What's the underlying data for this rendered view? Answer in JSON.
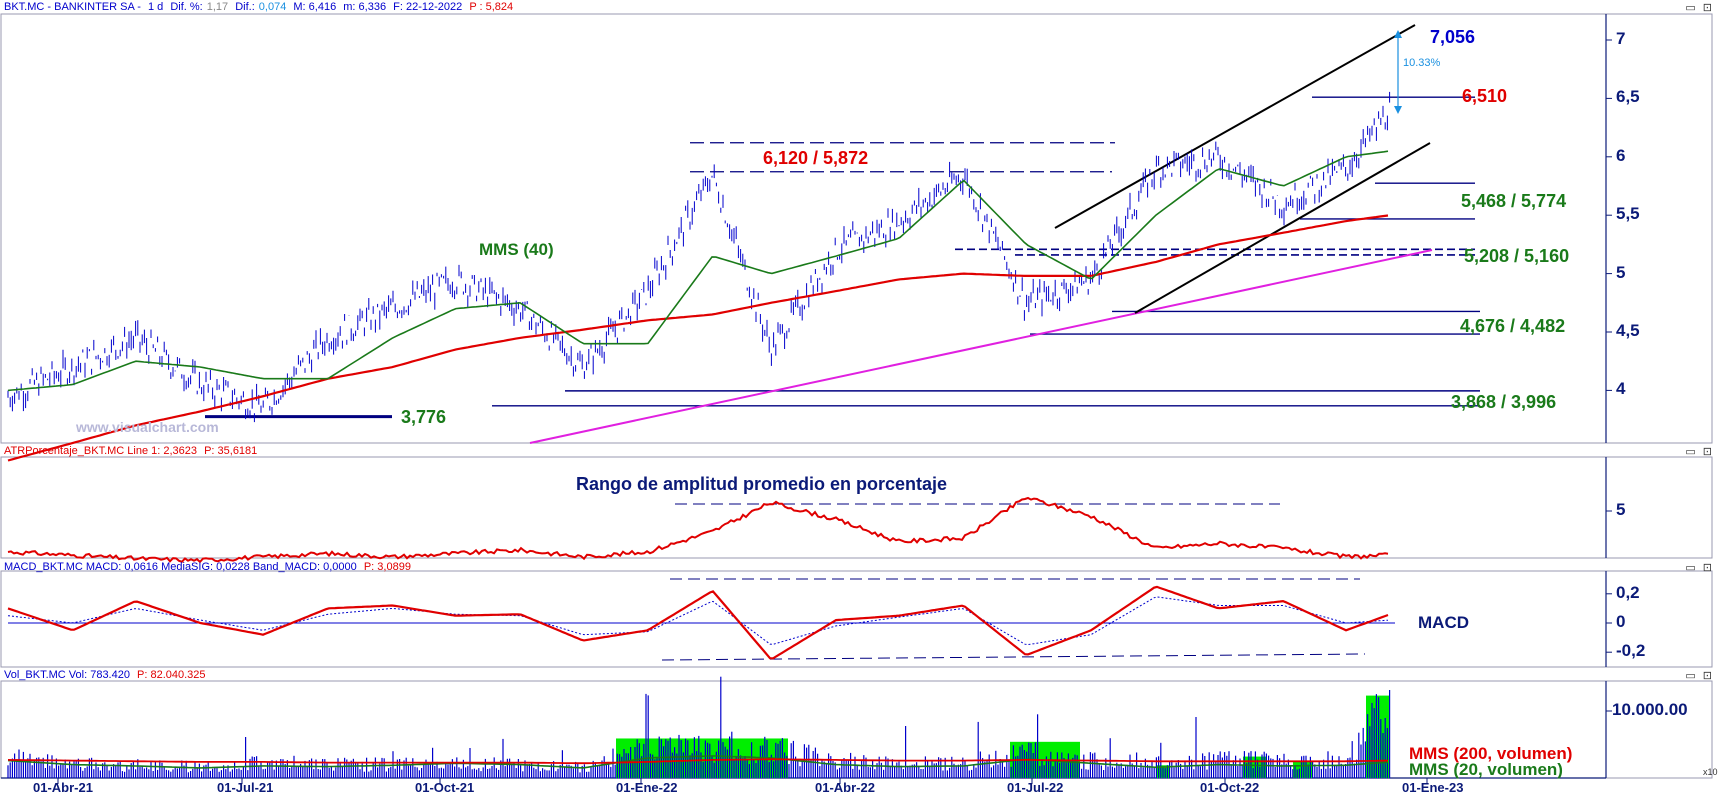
{
  "header": {
    "symbol": "BKT.MC - BANKINTER SA -",
    "timeframe": "1 d",
    "dif_pct_label": "Dif. %:",
    "dif_pct": "1,17",
    "dif_label": "Dif.:",
    "dif": "0,074",
    "max": "M: 6,416",
    "min": "m: 6,336",
    "date": "F: 22-12-2022",
    "price": "P : 5,824",
    "window_buttons": "▭ ⊡"
  },
  "panes": {
    "atr_title": "ATRPorcentaje_BKT.MC Line 1: 2,3623",
    "atr_p": "P: 35,6181",
    "macd_title": "MACD_BKT.MC MACD: 0,0616 MediaSIG: 0,0228 Band_MACD: 0,0000",
    "macd_p": "P: 3,0899",
    "vol_title": "Vol_BKT.MC Vol: 783.420",
    "vol_p": "P: 82.040.325",
    "vol_multiplier": "x10"
  },
  "watermark": "www.visualchart.com",
  "annotations": {
    "mms40": "MMS (40)",
    "level_3776": "3,776",
    "level_6120": "6,120 /  5,872",
    "level_7056": "7,056",
    "pct_10": "10.33%",
    "level_6510": "6,510",
    "level_5468": "5,468 / 5,774",
    "level_5208": "5,208 / 5,160",
    "level_4676": "4,676 / 4,482",
    "level_3868": "3,868 / 3,996",
    "atr_caption": "Rango de amplitud promedio en porcentaje",
    "macd_caption": "MACD",
    "mms200_vol": "MMS (200, volumen)",
    "mms20_vol": "MMS (20, volumen)"
  },
  "colors": {
    "price": "#0000cc",
    "mms40": "#1a7a1a",
    "mms200": "#e00000",
    "trendline": "#e020e0",
    "support": "#000080",
    "channel": "#000000",
    "volume": "#0000cc",
    "vol_highlight": "#00ee00",
    "label_green": "#1a7a1a",
    "label_red": "#e00000",
    "label_blue": "#0000cc",
    "pct_blue": "#1a90e0"
  },
  "chart_data": [
    {
      "type": "line",
      "name": "BKT.MC daily price",
      "x": [
        "2021-03-01",
        "2021-04-01",
        "2021-05-01",
        "2021-06-01",
        "2021-07-01",
        "2021-08-01",
        "2021-09-01",
        "2021-10-01",
        "2021-11-01",
        "2021-12-01",
        "2022-01-01",
        "2022-02-01",
        "2022-03-01",
        "2022-04-01",
        "2022-05-01",
        "2022-06-01",
        "2022-07-01",
        "2022-08-01",
        "2022-09-01",
        "2022-10-01",
        "2022-11-01",
        "2022-12-01",
        "2022-12-22"
      ],
      "close": [
        3.95,
        4.2,
        4.45,
        4.05,
        3.85,
        4.45,
        4.7,
        4.95,
        4.7,
        4.2,
        4.85,
        5.85,
        4.35,
        5.2,
        5.45,
        5.85,
        4.75,
        4.95,
        5.9,
        6.0,
        5.6,
        5.9,
        6.4
      ],
      "series": [
        {
          "name": "MMS (40)",
          "values": [
            4.0,
            4.05,
            4.25,
            4.2,
            4.1,
            4.1,
            4.45,
            4.7,
            4.75,
            4.4,
            4.4,
            5.15,
            5.0,
            5.15,
            5.3,
            5.8,
            5.25,
            4.95,
            5.5,
            5.9,
            5.75,
            6.0,
            6.05
          ]
        },
        {
          "name": "MMS (200)",
          "values": [
            3.4,
            3.55,
            3.7,
            3.82,
            3.95,
            4.1,
            4.2,
            4.35,
            4.45,
            4.52,
            4.6,
            4.65,
            4.75,
            4.85,
            4.95,
            5.0,
            4.98,
            4.98,
            5.1,
            5.25,
            5.35,
            5.45,
            5.5
          ]
        }
      ],
      "horizontal_levels": [
        7.056,
        6.51,
        6.12,
        5.872,
        5.774,
        5.468,
        5.208,
        5.16,
        4.676,
        4.482,
        3.996,
        3.868,
        3.776
      ],
      "percent_annotation": "10.33%",
      "ylim": [
        3.5,
        7.2
      ],
      "yticks": [
        "4",
        "4,5",
        "5",
        "5,5",
        "6",
        "6,5",
        "7"
      ],
      "xticks": [
        "01-Abr-21",
        "01-Jul-21",
        "01-Oct-21",
        "01-Ene-22",
        "01-Abr-22",
        "01-Jul-22",
        "01-Oct-22",
        "01-Ene-23"
      ]
    },
    {
      "type": "line",
      "name": "ATR %",
      "values": [
        2.6,
        2.4,
        2.2,
        2.1,
        2.3,
        2.5,
        2.3,
        2.5,
        2.7,
        2.3,
        2.6,
        3.8,
        5.5,
        4.5,
        3.2,
        3.4,
        5.8,
        4.7,
        2.8,
        3.1,
        2.8,
        2.3,
        2.4
      ],
      "yticks": [
        "5"
      ]
    },
    {
      "type": "line",
      "name": "MACD",
      "series": [
        {
          "name": "MACD",
          "values": [
            0.1,
            -0.05,
            0.15,
            0.0,
            -0.08,
            0.1,
            0.12,
            0.05,
            0.06,
            -0.12,
            -0.05,
            0.22,
            -0.25,
            0.02,
            0.05,
            0.12,
            -0.22,
            -0.05,
            0.25,
            0.1,
            0.15,
            -0.05,
            0.06
          ]
        },
        {
          "name": "MediaSIG",
          "values": [
            0.05,
            0.0,
            0.1,
            0.02,
            -0.05,
            0.06,
            0.1,
            0.06,
            0.05,
            -0.08,
            -0.06,
            0.15,
            -0.15,
            -0.02,
            0.04,
            0.1,
            -0.15,
            -0.08,
            0.18,
            0.12,
            0.12,
            0.0,
            0.02
          ]
        }
      ],
      "yticks": [
        "0,2",
        "0",
        "-0,2"
      ]
    },
    {
      "type": "bar",
      "name": "Volumen",
      "values": [
        3.5,
        2.5,
        2.2,
        2.0,
        2.6,
        2.3,
        2.4,
        2.5,
        2.3,
        2.0,
        5.0,
        5.5,
        5.0,
        3.0,
        2.5,
        2.6,
        4.5,
        3.0,
        2.6,
        3.2,
        3.0,
        3.5,
        13.0
      ],
      "yticks": [
        "10.000.00"
      ]
    }
  ]
}
